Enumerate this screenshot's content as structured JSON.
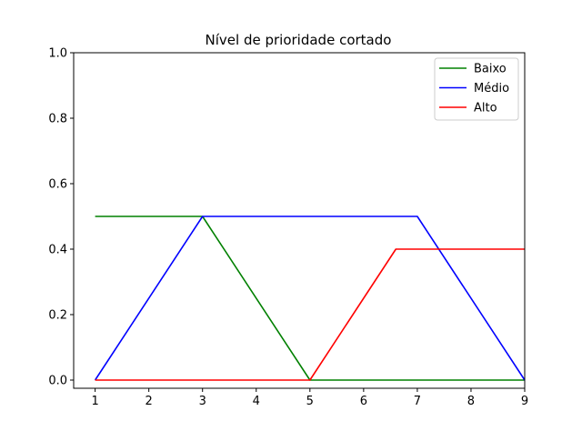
{
  "chart_data": {
    "type": "line",
    "title": "Nível de prioridade cortado",
    "xlabel": "",
    "ylabel": "",
    "xlim": [
      0.6,
      9
    ],
    "ylim": [
      -0.025,
      1.0
    ],
    "xticks": [
      1,
      2,
      3,
      4,
      5,
      6,
      7,
      8,
      9
    ],
    "yticks": [
      "0.0",
      "0.2",
      "0.4",
      "0.6",
      "0.8",
      "1.0"
    ],
    "grid": false,
    "legend_position": "top-right",
    "series": [
      {
        "name": "Baixo",
        "color": "#008000",
        "x": [
          1,
          3,
          5,
          9
        ],
        "y": [
          0.5,
          0.5,
          0.0,
          0.0
        ]
      },
      {
        "name": "Médio",
        "color": "#0000ff",
        "x": [
          1,
          3,
          7,
          9
        ],
        "y": [
          0.0,
          0.5,
          0.5,
          0.0
        ]
      },
      {
        "name": "Alto",
        "color": "#ff0000",
        "x": [
          1,
          5,
          6.6,
          9
        ],
        "y": [
          0.0,
          0.0,
          0.4,
          0.4
        ]
      }
    ]
  }
}
